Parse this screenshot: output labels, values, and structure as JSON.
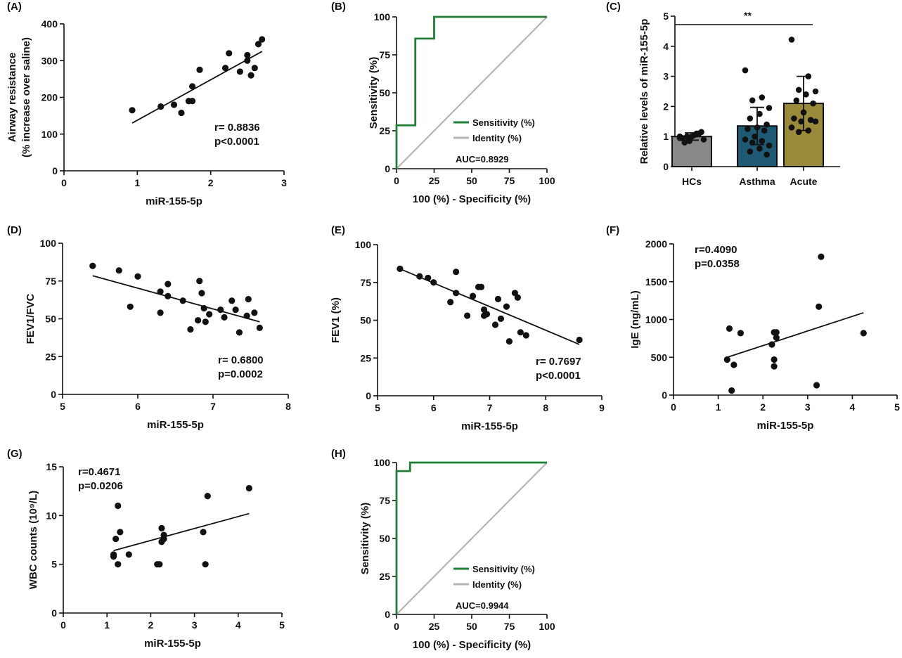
{
  "chart_data": [
    {
      "id": "A",
      "type": "scatter",
      "panel_label": "(A)",
      "xlabel": "miR-155-5p",
      "ylabel": [
        "Airway resistance",
        "(% increase over saline)"
      ],
      "xlim": [
        0,
        3
      ],
      "ylim": [
        0,
        400
      ],
      "xticks": [
        0,
        1,
        2,
        3
      ],
      "yticks": [
        0,
        100,
        200,
        300,
        400
      ],
      "points": [
        [
          0.93,
          165
        ],
        [
          1.32,
          175
        ],
        [
          1.5,
          180
        ],
        [
          1.6,
          158
        ],
        [
          1.7,
          190
        ],
        [
          1.75,
          230
        ],
        [
          1.75,
          190
        ],
        [
          1.85,
          275
        ],
        [
          2.2,
          280
        ],
        [
          2.25,
          320
        ],
        [
          2.4,
          270
        ],
        [
          2.5,
          315
        ],
        [
          2.5,
          300
        ],
        [
          2.55,
          260
        ],
        [
          2.6,
          280
        ],
        [
          2.65,
          345
        ],
        [
          2.7,
          358
        ]
      ],
      "fit": [
        [
          0.93,
          130
        ],
        [
          2.7,
          325
        ]
      ],
      "stats": [
        "r= 0.8836",
        "p<0.0001"
      ]
    },
    {
      "id": "B",
      "type": "line",
      "panel_label": "(B)",
      "xlabel": "100 (%) - Specificity (%)",
      "ylabel": "Sensitivity (%)",
      "xlim": [
        0,
        100
      ],
      "ylim": [
        0,
        100
      ],
      "xticks": [
        0,
        25,
        50,
        75,
        100
      ],
      "yticks": [
        0,
        25,
        50,
        75,
        100
      ],
      "series": [
        {
          "name": "Sensitivity (%)",
          "color": "#1f7f34",
          "points": [
            [
              0,
              0
            ],
            [
              0,
              28.6
            ],
            [
              12.5,
              28.6
            ],
            [
              12.5,
              85.7
            ],
            [
              25,
              85.7
            ],
            [
              25,
              100
            ],
            [
              100,
              100
            ]
          ]
        },
        {
          "name": "Identity (%)",
          "color": "#b5b5b5",
          "points": [
            [
              0,
              0
            ],
            [
              100,
              100
            ]
          ]
        }
      ],
      "auc": "AUC=0.8929"
    },
    {
      "id": "C",
      "type": "bar",
      "panel_label": "(C)",
      "ylabel": "Relative levels of miR-155-5p",
      "categories": [
        "HCs",
        "Asthma",
        "Acute"
      ],
      "values": [
        1.0,
        1.35,
        2.1
      ],
      "errors": [
        0.12,
        0.62,
        0.9
      ],
      "colors": [
        "#888888",
        "#1e5a73",
        "#9a8a3c"
      ],
      "points": [
        [
          0.95,
          1.1,
          1.0,
          0.9,
          1.05,
          0.8,
          1.15,
          1.0,
          0.95,
          1.1,
          0.85,
          1.0
        ],
        [
          3.2,
          2.3,
          2.2,
          1.95,
          1.75,
          1.6,
          1.4,
          1.3,
          1.25,
          1.2,
          1.0,
          0.9,
          0.85,
          0.8,
          0.7,
          0.6,
          0.5,
          0.4
        ],
        [
          4.22,
          3.0,
          2.55,
          2.5,
          2.4,
          2.2,
          2.1,
          1.8,
          1.6,
          1.55,
          1.5,
          1.3,
          1.2,
          1.15,
          1.5
        ]
      ],
      "ylim": [
        0,
        5
      ],
      "yticks": [
        0,
        1,
        2,
        3,
        4,
        5
      ],
      "significance": "**"
    },
    {
      "id": "D",
      "type": "scatter",
      "panel_label": "(D)",
      "xlabel": "miR-155-5p",
      "ylabel": "FEV1/FVC",
      "xlim": [
        5,
        8
      ],
      "ylim": [
        0,
        100
      ],
      "xticks": [
        5,
        6,
        7,
        8
      ],
      "yticks": [
        0,
        25,
        50,
        75,
        100
      ],
      "points": [
        [
          5.4,
          85
        ],
        [
          5.75,
          82
        ],
        [
          5.9,
          58
        ],
        [
          6.0,
          78
        ],
        [
          6.3,
          54
        ],
        [
          6.3,
          68
        ],
        [
          6.4,
          73
        ],
        [
          6.4,
          65
        ],
        [
          6.6,
          62
        ],
        [
          6.7,
          43
        ],
        [
          6.8,
          49
        ],
        [
          6.82,
          75
        ],
        [
          6.85,
          67
        ],
        [
          6.88,
          57
        ],
        [
          6.9,
          48
        ],
        [
          6.95,
          53
        ],
        [
          7.1,
          56
        ],
        [
          7.15,
          51
        ],
        [
          7.25,
          62
        ],
        [
          7.3,
          56
        ],
        [
          7.35,
          41
        ],
        [
          7.45,
          52
        ],
        [
          7.47,
          63
        ],
        [
          7.55,
          54
        ],
        [
          7.62,
          44
        ]
      ],
      "fit": [
        [
          5.4,
          78.5
        ],
        [
          7.62,
          48
        ]
      ],
      "stats": [
        "r= 0.6800",
        "p=0.0002"
      ]
    },
    {
      "id": "E",
      "type": "scatter",
      "panel_label": "(E)",
      "xlabel": "miR-155-5p",
      "ylabel": "FEV1 (%)",
      "xlim": [
        5,
        9
      ],
      "ylim": [
        0,
        100
      ],
      "xticks": [
        5,
        6,
        7,
        8,
        9
      ],
      "yticks": [
        0,
        25,
        50,
        75,
        100
      ],
      "points": [
        [
          5.4,
          84
        ],
        [
          5.75,
          79
        ],
        [
          5.9,
          78
        ],
        [
          6.0,
          75
        ],
        [
          6.3,
          62
        ],
        [
          6.4,
          82
        ],
        [
          6.4,
          68
        ],
        [
          6.6,
          53
        ],
        [
          6.7,
          66
        ],
        [
          6.8,
          72
        ],
        [
          6.85,
          72
        ],
        [
          6.9,
          57
        ],
        [
          6.9,
          53
        ],
        [
          6.95,
          54
        ],
        [
          7.1,
          47
        ],
        [
          7.15,
          64
        ],
        [
          7.2,
          51
        ],
        [
          7.3,
          59
        ],
        [
          7.35,
          36
        ],
        [
          7.45,
          68
        ],
        [
          7.5,
          65
        ],
        [
          7.55,
          42
        ],
        [
          7.65,
          40
        ],
        [
          8.6,
          37
        ]
      ],
      "fit": [
        [
          5.4,
          84
        ],
        [
          8.6,
          34
        ]
      ],
      "stats": [
        "r= 0.7697",
        "p<0.0001"
      ]
    },
    {
      "id": "F",
      "type": "scatter",
      "panel_label": "(F)",
      "xlabel": "miR-155-5p",
      "ylabel": "IgE (ng/mL)",
      "xlim": [
        0,
        5
      ],
      "ylim": [
        0,
        2000
      ],
      "xticks": [
        0,
        1,
        2,
        3,
        4,
        5
      ],
      "yticks": [
        0,
        500,
        1000,
        1500,
        2000
      ],
      "points": [
        [
          1.2,
          470
        ],
        [
          1.25,
          880
        ],
        [
          1.3,
          60
        ],
        [
          1.35,
          400
        ],
        [
          1.5,
          820
        ],
        [
          2.2,
          670
        ],
        [
          2.25,
          830
        ],
        [
          2.25,
          470
        ],
        [
          2.25,
          380
        ],
        [
          2.3,
          830
        ],
        [
          2.3,
          760
        ],
        [
          3.2,
          130
        ],
        [
          3.25,
          1170
        ],
        [
          3.3,
          1830
        ],
        [
          4.25,
          820
        ]
      ],
      "fit": [
        [
          1.2,
          500
        ],
        [
          4.25,
          1090
        ]
      ],
      "stats": [
        "r=0.4090",
        "p=0.0358"
      ]
    },
    {
      "id": "G",
      "type": "scatter",
      "panel_label": "(G)",
      "xlabel": "miR-155-5p",
      "ylabel": "WBC counts (10⁹/L)",
      "xlim": [
        0,
        5
      ],
      "ylim": [
        0,
        15
      ],
      "xticks": [
        0,
        1,
        2,
        3,
        4,
        5
      ],
      "yticks": [
        0,
        5,
        10,
        15
      ],
      "points": [
        [
          1.15,
          6.0
        ],
        [
          1.15,
          5.8
        ],
        [
          1.2,
          7.6
        ],
        [
          1.25,
          5.0
        ],
        [
          1.25,
          11.0
        ],
        [
          1.3,
          8.3
        ],
        [
          1.5,
          6.0
        ],
        [
          2.15,
          5.0
        ],
        [
          2.2,
          5.0
        ],
        [
          2.25,
          7.3
        ],
        [
          2.25,
          8.7
        ],
        [
          2.3,
          7.6
        ],
        [
          2.3,
          8.0
        ],
        [
          3.2,
          8.3
        ],
        [
          3.25,
          5.0
        ],
        [
          3.3,
          12.0
        ],
        [
          4.25,
          12.8
        ]
      ],
      "fit": [
        [
          1.15,
          6.4
        ],
        [
          4.25,
          10.2
        ]
      ],
      "stats": [
        "r=0.4671",
        "p=0.0206"
      ]
    },
    {
      "id": "H",
      "type": "line",
      "panel_label": "(H)",
      "xlabel": "100 (%) - Specificity (%)",
      "ylabel": "Sensitivity (%)",
      "xlim": [
        0,
        100
      ],
      "ylim": [
        0,
        100
      ],
      "xticks": [
        0,
        25,
        50,
        75,
        100
      ],
      "yticks": [
        0,
        25,
        50,
        75,
        100
      ],
      "series": [
        {
          "name": "Sensitivity (%)",
          "color": "#1f7f34",
          "points": [
            [
              0,
              0
            ],
            [
              0,
              94.4
            ],
            [
              9,
              94.4
            ],
            [
              9,
              100
            ],
            [
              100,
              100
            ]
          ]
        },
        {
          "name": "Identity (%)",
          "color": "#b5b5b5",
          "points": [
            [
              0,
              0
            ],
            [
              100,
              100
            ]
          ]
        }
      ],
      "auc": "AUC=0.9944"
    }
  ]
}
